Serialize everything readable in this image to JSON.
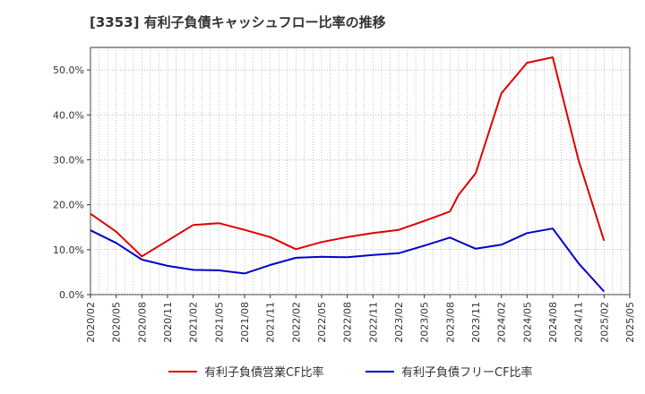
{
  "chart_data": {
    "type": "line",
    "title": "[3353]  有利子負債キャッシュフロー比率の推移",
    "xlabel": "",
    "ylabel": "",
    "ylim": [
      0,
      55
    ],
    "yticks": [
      0,
      10,
      20,
      30,
      40,
      50
    ],
    "ytick_labels": [
      "0.0%",
      "10.0%",
      "20.0%",
      "30.0%",
      "40.0%",
      "50.0%"
    ],
    "x_start": "2020/02",
    "x_end": "2025/05",
    "xtick_labels": [
      "2020/02",
      "2020/05",
      "2020/08",
      "2020/11",
      "2021/02",
      "2021/05",
      "2021/08",
      "2021/11",
      "2022/02",
      "2022/05",
      "2022/08",
      "2022/11",
      "2023/02",
      "2023/05",
      "2023/08",
      "2023/11",
      "2024/02",
      "2024/05",
      "2024/08",
      "2024/11",
      "2025/02",
      "2025/05"
    ],
    "grid": true,
    "legend_position": "bottom",
    "series": [
      {
        "name": "有利子負債営業CF比率",
        "color": "#dd0000",
        "points": [
          [
            "2020/02",
            18.0
          ],
          [
            "2020/05",
            14.0
          ],
          [
            "2020/08",
            8.5
          ],
          [
            "2020/11",
            12.0
          ],
          [
            "2021/02",
            15.5
          ],
          [
            "2021/05",
            15.9
          ],
          [
            "2021/08",
            14.4
          ],
          [
            "2021/11",
            12.8
          ],
          [
            "2022/02",
            10.1
          ],
          [
            "2022/05",
            11.7
          ],
          [
            "2022/08",
            12.8
          ],
          [
            "2022/11",
            13.7
          ],
          [
            "2023/02",
            14.4
          ],
          [
            "2023/05",
            16.4
          ],
          [
            "2023/08",
            18.5
          ],
          [
            "2023/09",
            22.2
          ],
          [
            "2023/11",
            27.0
          ],
          [
            "2024/02",
            44.8
          ],
          [
            "2024/05",
            51.6
          ],
          [
            "2024/08",
            52.8
          ],
          [
            "2024/11",
            30.0
          ],
          [
            "2025/02",
            12.0
          ]
        ]
      },
      {
        "name": "有利子負債フリーCF比率",
        "color": "#0000cc",
        "points": [
          [
            "2020/02",
            14.3
          ],
          [
            "2020/05",
            11.5
          ],
          [
            "2020/08",
            7.8
          ],
          [
            "2020/11",
            6.4
          ],
          [
            "2021/02",
            5.5
          ],
          [
            "2021/05",
            5.4
          ],
          [
            "2021/08",
            4.7
          ],
          [
            "2021/11",
            6.6
          ],
          [
            "2022/02",
            8.2
          ],
          [
            "2022/05",
            8.4
          ],
          [
            "2022/08",
            8.3
          ],
          [
            "2022/11",
            8.8
          ],
          [
            "2023/02",
            9.2
          ],
          [
            "2023/05",
            10.9
          ],
          [
            "2023/08",
            12.7
          ],
          [
            "2023/11",
            10.2
          ],
          [
            "2024/02",
            11.1
          ],
          [
            "2024/05",
            13.7
          ],
          [
            "2024/08",
            14.7
          ],
          [
            "2024/11",
            7.0
          ],
          [
            "2025/02",
            0.7
          ]
        ]
      }
    ]
  }
}
